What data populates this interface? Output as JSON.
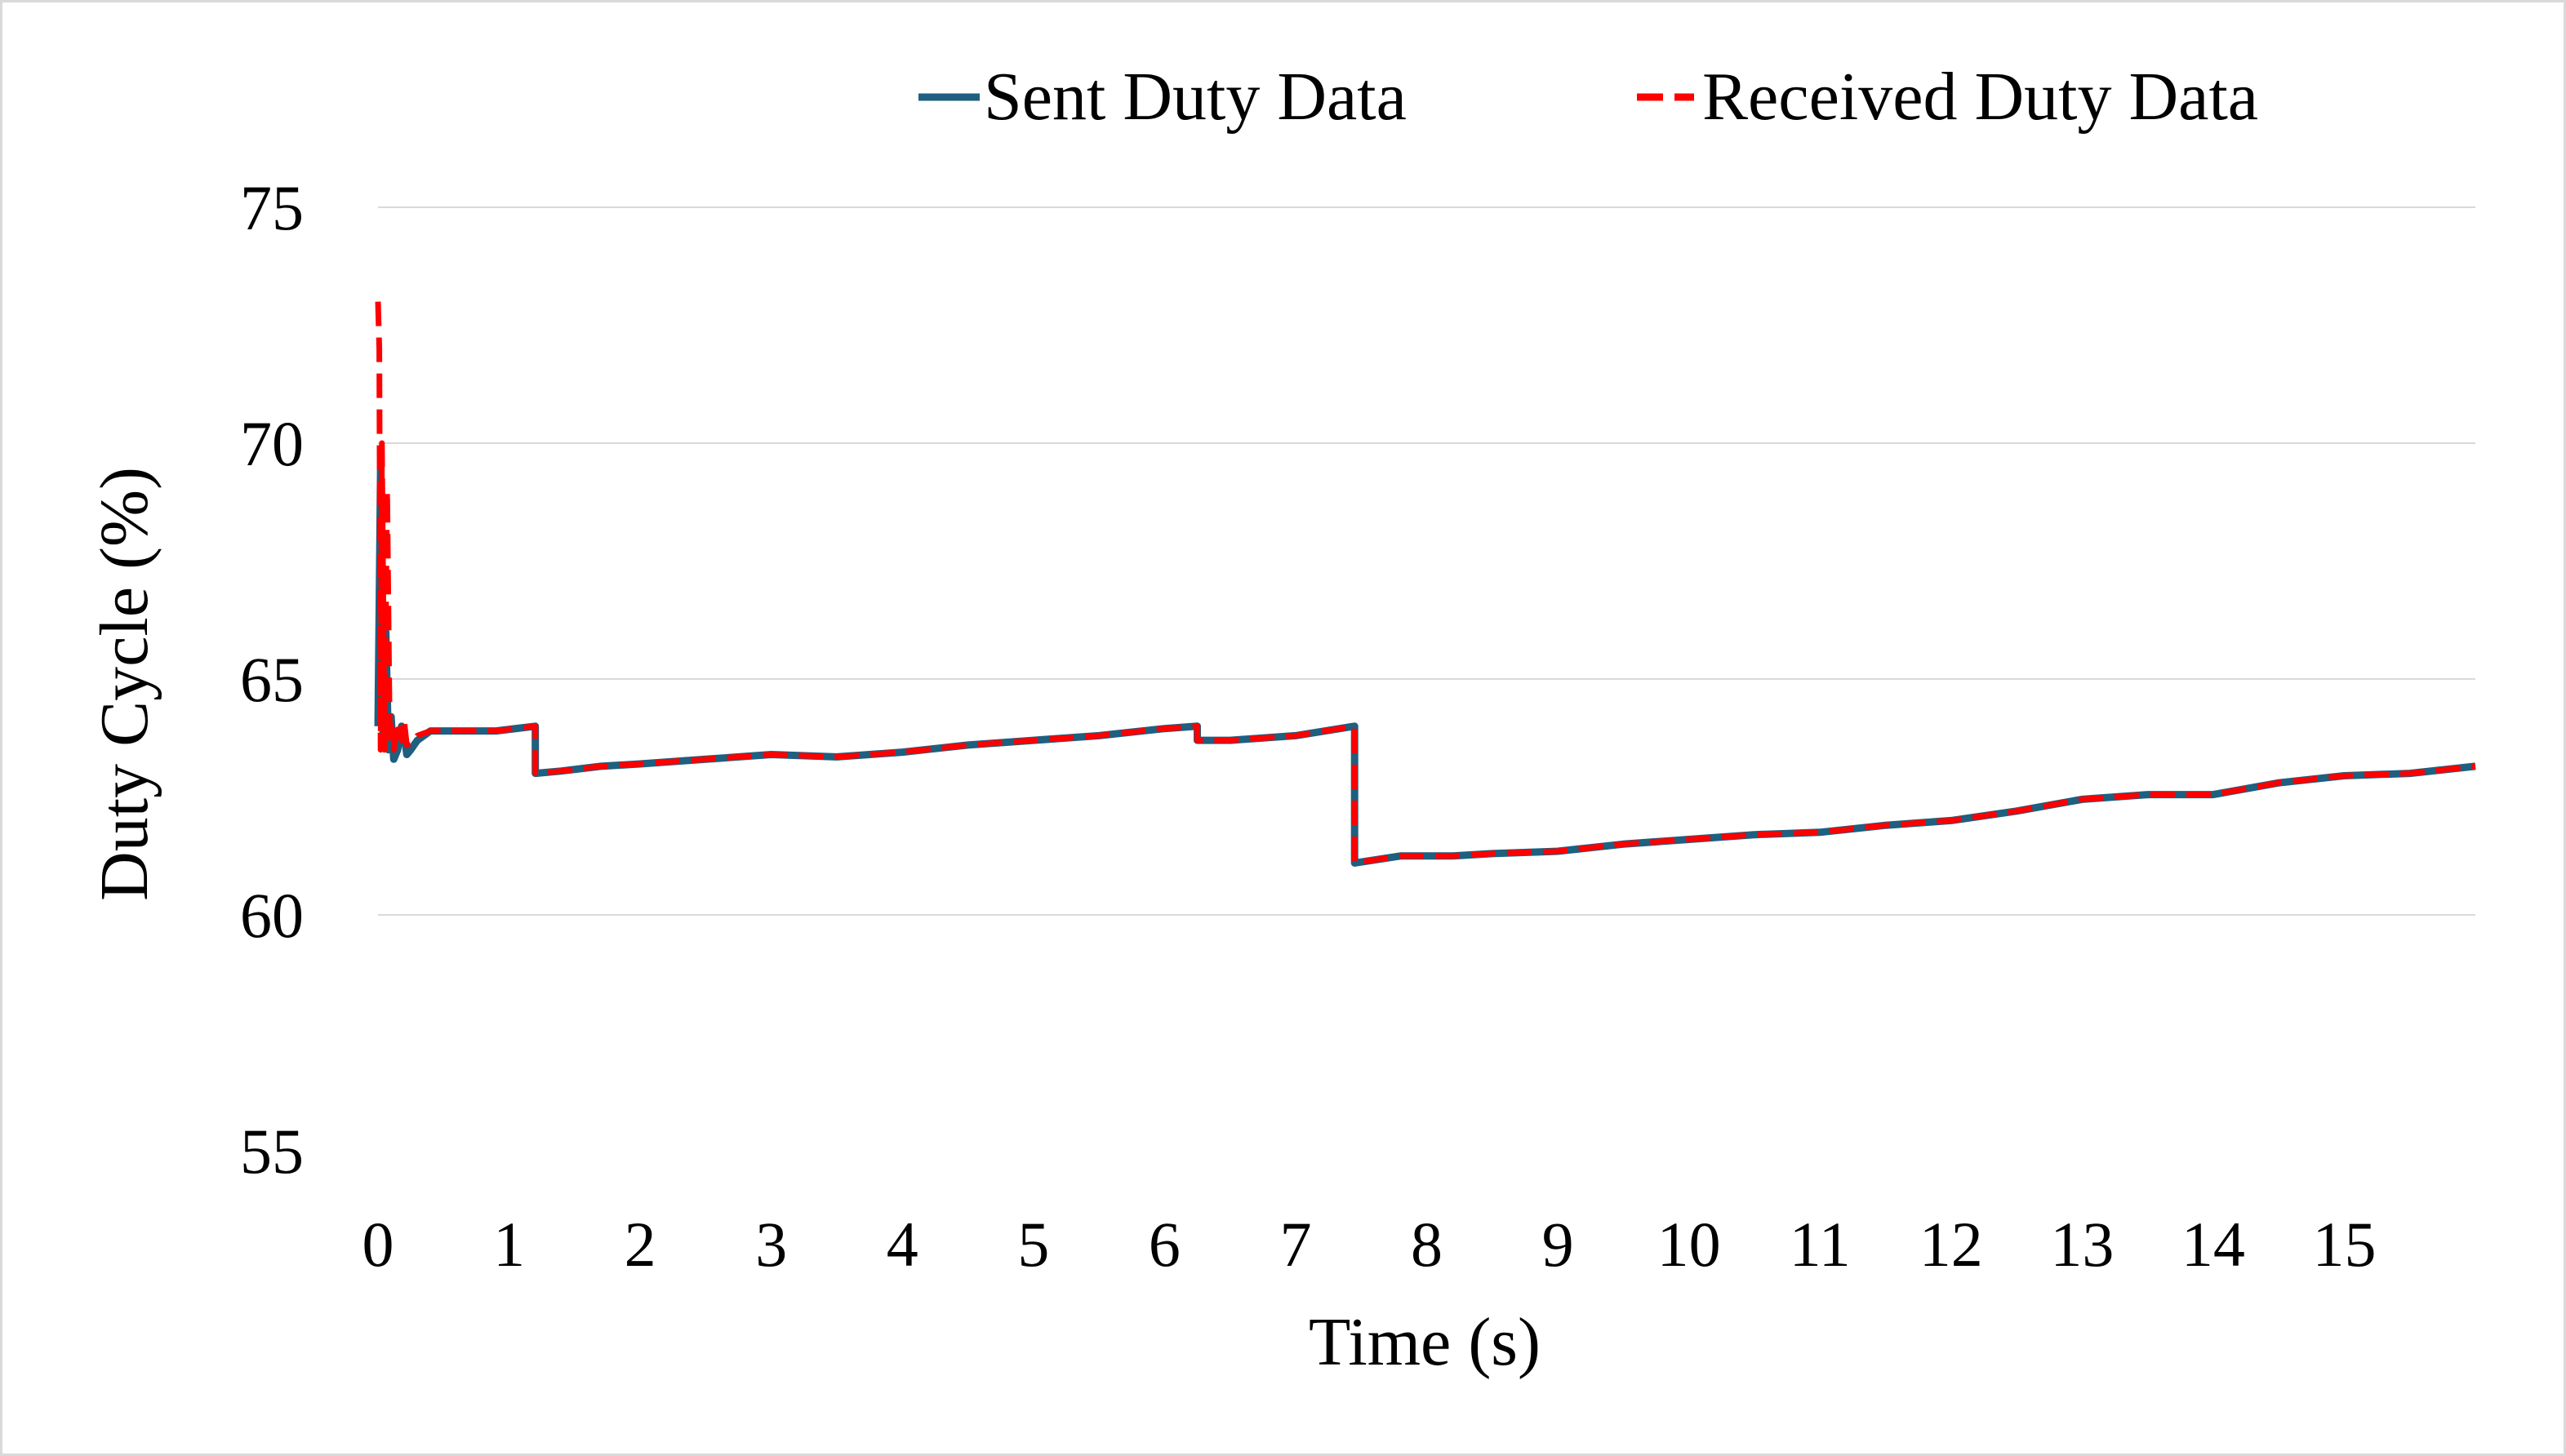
{
  "chart_data": {
    "type": "line",
    "title": "",
    "xlabel": "Time (s)",
    "ylabel": "Duty Cycle (%)",
    "xlim": [
      0,
      16
    ],
    "ylim": [
      55,
      75
    ],
    "x_ticks": [
      0,
      1,
      2,
      3,
      4,
      5,
      6,
      7,
      8,
      9,
      10,
      11,
      12,
      13,
      14,
      15
    ],
    "y_ticks": [
      55,
      60,
      65,
      70,
      75
    ],
    "grid": "horizontal",
    "legend_position": "top",
    "series": [
      {
        "name": "Sent Duty Data",
        "color": "#1f5f7f",
        "style": "solid",
        "points": [
          [
            0.0,
            64.0
          ],
          [
            0.02,
            69.5
          ],
          [
            0.04,
            63.6
          ],
          [
            0.06,
            66.0
          ],
          [
            0.08,
            63.5
          ],
          [
            0.1,
            64.2
          ],
          [
            0.12,
            63.3
          ],
          [
            0.15,
            63.5
          ],
          [
            0.18,
            64.0
          ],
          [
            0.2,
            63.8
          ],
          [
            0.22,
            63.4
          ],
          [
            0.25,
            63.5
          ],
          [
            0.3,
            63.7
          ],
          [
            0.4,
            63.9
          ],
          [
            0.6,
            63.9
          ],
          [
            0.9,
            63.9
          ],
          [
            1.2,
            64.0
          ],
          [
            1.2,
            63.0
          ],
          [
            1.4,
            63.05
          ],
          [
            1.7,
            63.15
          ],
          [
            2.0,
            63.2
          ],
          [
            2.5,
            63.3
          ],
          [
            3.0,
            63.4
          ],
          [
            3.5,
            63.35
          ],
          [
            4.0,
            63.45
          ],
          [
            4.5,
            63.6
          ],
          [
            5.0,
            63.7
          ],
          [
            5.5,
            63.8
          ],
          [
            6.0,
            63.95
          ],
          [
            6.25,
            64.0
          ],
          [
            6.25,
            63.7
          ],
          [
            6.5,
            63.7
          ],
          [
            7.0,
            63.8
          ],
          [
            7.45,
            64.0
          ],
          [
            7.45,
            61.1
          ],
          [
            7.8,
            61.25
          ],
          [
            8.2,
            61.25
          ],
          [
            8.5,
            61.3
          ],
          [
            9.0,
            61.35
          ],
          [
            9.5,
            61.5
          ],
          [
            10.0,
            61.6
          ],
          [
            10.5,
            61.7
          ],
          [
            11.0,
            61.75
          ],
          [
            11.5,
            61.9
          ],
          [
            12.0,
            62.0
          ],
          [
            12.5,
            62.2
          ],
          [
            13.0,
            62.45
          ],
          [
            13.5,
            62.55
          ],
          [
            14.0,
            62.55
          ],
          [
            14.5,
            62.8
          ],
          [
            15.0,
            62.95
          ],
          [
            15.5,
            63.0
          ],
          [
            16.0,
            63.15
          ]
        ]
      },
      {
        "name": "Received Duty Data",
        "color": "#ff0000",
        "style": "dashed",
        "points": [
          [
            0.0,
            73.0
          ],
          [
            0.01,
            72.0
          ],
          [
            0.02,
            63.5
          ],
          [
            0.03,
            70.0
          ],
          [
            0.05,
            63.5
          ],
          [
            0.07,
            69.0
          ],
          [
            0.09,
            63.6
          ],
          [
            0.1,
            64.0
          ],
          [
            0.12,
            63.5
          ],
          [
            0.15,
            64.1
          ],
          [
            0.18,
            63.7
          ],
          [
            0.2,
            64.1
          ],
          [
            0.22,
            63.6
          ],
          [
            0.25,
            63.6
          ],
          [
            0.3,
            63.8
          ],
          [
            0.4,
            63.9
          ],
          [
            0.6,
            63.9
          ],
          [
            0.9,
            63.9
          ],
          [
            1.2,
            64.0
          ],
          [
            1.2,
            63.0
          ],
          [
            1.4,
            63.05
          ],
          [
            1.7,
            63.15
          ],
          [
            2.0,
            63.2
          ],
          [
            2.5,
            63.3
          ],
          [
            3.0,
            63.4
          ],
          [
            3.5,
            63.35
          ],
          [
            4.0,
            63.45
          ],
          [
            4.5,
            63.6
          ],
          [
            5.0,
            63.7
          ],
          [
            5.5,
            63.8
          ],
          [
            6.0,
            63.95
          ],
          [
            6.25,
            64.0
          ],
          [
            6.25,
            63.7
          ],
          [
            6.5,
            63.7
          ],
          [
            7.0,
            63.8
          ],
          [
            7.45,
            64.0
          ],
          [
            7.45,
            61.1
          ],
          [
            7.8,
            61.25
          ],
          [
            8.2,
            61.25
          ],
          [
            8.5,
            61.3
          ],
          [
            9.0,
            61.35
          ],
          [
            9.5,
            61.5
          ],
          [
            10.0,
            61.6
          ],
          [
            10.5,
            61.7
          ],
          [
            11.0,
            61.75
          ],
          [
            11.5,
            61.9
          ],
          [
            12.0,
            62.0
          ],
          [
            12.5,
            62.2
          ],
          [
            13.0,
            62.45
          ],
          [
            13.5,
            62.55
          ],
          [
            14.0,
            62.55
          ],
          [
            14.5,
            62.8
          ],
          [
            15.0,
            62.95
          ],
          [
            15.5,
            63.0
          ],
          [
            16.0,
            63.15
          ]
        ]
      }
    ]
  }
}
